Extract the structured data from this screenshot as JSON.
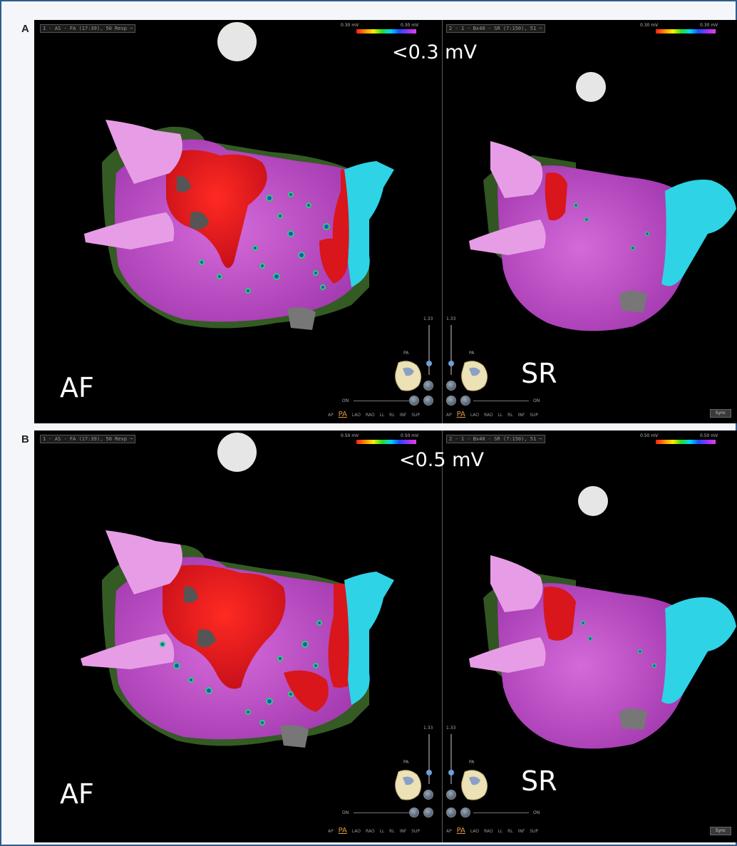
{
  "panels": [
    {
      "letter": "A",
      "threshold": "<0.3 mV",
      "left": {
        "rhythm": "AF",
        "view_tag": "1 - AS - FA (17:39), 50 Resp ~",
        "scale_min": "0.30 mV",
        "scale_max": "0.30 mV",
        "orientation": "PA",
        "zoom": "1.33",
        "zoom_label": "ON"
      },
      "right": {
        "rhythm": "SR",
        "view_tag": "2 - 1 - Bx40 - SR (7:150), 51 ~",
        "scale_min": "0.30 mV",
        "scale_max": "0.30 mV",
        "orientation": "PA",
        "zoom": "1.33",
        "zoom_label": "ON"
      },
      "views": [
        "AP",
        "PA",
        "LAO",
        "RAO",
        "LL",
        "RL",
        "INF",
        "SUP"
      ],
      "sync_label": "Sync"
    },
    {
      "letter": "B",
      "threshold": "<0.5 mV",
      "left": {
        "rhythm": "AF",
        "view_tag": "1 - AS - FA (17:39), 50 Resp ~",
        "scale_min": "0.50 mV",
        "scale_max": "0.50 mV",
        "orientation": "PA",
        "zoom": "1.33",
        "zoom_label": "ON"
      },
      "right": {
        "rhythm": "SR",
        "view_tag": "2 - 1 - Bx40 - SR (7:150), 51 ~",
        "scale_min": "0.50 mV",
        "scale_max": "0.50 mV",
        "orientation": "PA",
        "zoom": "1.33",
        "zoom_label": "ON"
      },
      "views": [
        "AP",
        "PA",
        "LAO",
        "RAO",
        "LL",
        "RL",
        "INF",
        "SUP"
      ],
      "sync_label": "Sync"
    }
  ],
  "colors": {
    "frame_border": "#2d5b8f",
    "low_voltage": "#e8161b",
    "healthy_tissue": "#cf4fd6",
    "veins_pink": "#e79de5",
    "appendage_cyan": "#2fd3e6",
    "background_green": "#3d6b2a",
    "scar_gray": "#555555"
  }
}
